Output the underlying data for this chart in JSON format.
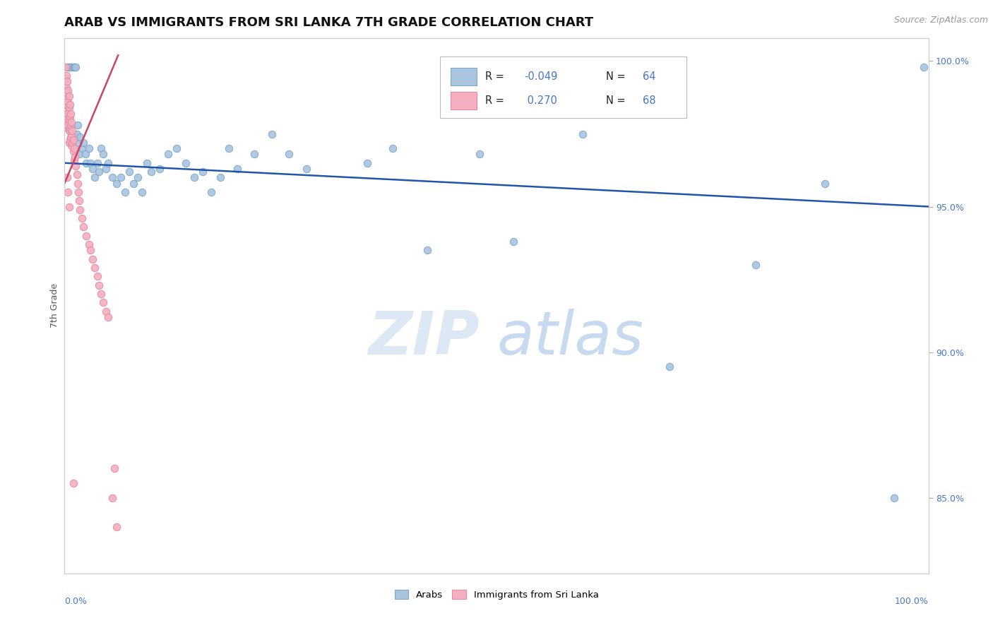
{
  "title": "ARAB VS IMMIGRANTS FROM SRI LANKA 7TH GRADE CORRELATION CHART",
  "source_text": "Source: ZipAtlas.com",
  "ylabel": "7th Grade",
  "ylabel_right_ticks": [
    85.0,
    90.0,
    95.0,
    100.0
  ],
  "xlim": [
    0.0,
    1.0
  ],
  "ylim": [
    0.824,
    1.008
  ],
  "watermark_zip": "ZIP",
  "watermark_atlas": "atlas",
  "blue_color": "#aac4e0",
  "blue_edge_color": "#7aaac8",
  "pink_color": "#f4b0c0",
  "pink_edge_color": "#e888a0",
  "blue_line_color": "#2255aa",
  "pink_line_color": "#cc4466",
  "grid_color": "#cccccc",
  "background_color": "#ffffff",
  "title_fontsize": 13,
  "axis_label_fontsize": 9,
  "tick_fontsize": 9,
  "source_fontsize": 9,
  "dot_size": 55,
  "blue_R": "-0.049",
  "blue_N": "64",
  "pink_R": "0.270",
  "pink_N": "68",
  "blue_line_x0": 0.0,
  "blue_line_x1": 1.0,
  "blue_line_y0": 0.965,
  "blue_line_y1": 0.95,
  "pink_line_x0": 0.0,
  "pink_line_x1": 0.062,
  "pink_line_y0": 0.958,
  "pink_line_y1": 1.002,
  "blue_x": [
    0.003,
    0.004,
    0.005,
    0.006,
    0.007,
    0.008,
    0.01,
    0.011,
    0.012,
    0.013,
    0.014,
    0.015,
    0.016,
    0.017,
    0.018,
    0.02,
    0.022,
    0.024,
    0.025,
    0.028,
    0.03,
    0.032,
    0.035,
    0.038,
    0.04,
    0.042,
    0.045,
    0.048,
    0.05,
    0.055,
    0.06,
    0.065,
    0.07,
    0.075,
    0.08,
    0.085,
    0.09,
    0.095,
    0.1,
    0.11,
    0.12,
    0.13,
    0.14,
    0.15,
    0.16,
    0.17,
    0.18,
    0.19,
    0.2,
    0.22,
    0.24,
    0.26,
    0.28,
    0.35,
    0.38,
    0.42,
    0.48,
    0.52,
    0.6,
    0.7,
    0.8,
    0.88,
    0.96,
    0.995
  ],
  "blue_y": [
    0.998,
    0.998,
    0.998,
    0.998,
    0.998,
    0.998,
    0.998,
    0.998,
    0.998,
    0.998,
    0.975,
    0.978,
    0.972,
    0.968,
    0.974,
    0.97,
    0.972,
    0.968,
    0.965,
    0.97,
    0.965,
    0.963,
    0.96,
    0.965,
    0.962,
    0.97,
    0.968,
    0.963,
    0.965,
    0.96,
    0.958,
    0.96,
    0.955,
    0.962,
    0.958,
    0.96,
    0.955,
    0.965,
    0.962,
    0.963,
    0.968,
    0.97,
    0.965,
    0.96,
    0.962,
    0.955,
    0.96,
    0.97,
    0.963,
    0.968,
    0.975,
    0.968,
    0.963,
    0.965,
    0.97,
    0.935,
    0.968,
    0.938,
    0.975,
    0.895,
    0.93,
    0.958,
    0.85,
    0.998
  ],
  "pink_x": [
    0.001,
    0.001,
    0.001,
    0.001,
    0.001,
    0.001,
    0.002,
    0.002,
    0.002,
    0.002,
    0.002,
    0.003,
    0.003,
    0.003,
    0.003,
    0.003,
    0.004,
    0.004,
    0.004,
    0.004,
    0.005,
    0.005,
    0.005,
    0.005,
    0.005,
    0.006,
    0.006,
    0.006,
    0.006,
    0.007,
    0.007,
    0.007,
    0.008,
    0.008,
    0.008,
    0.009,
    0.009,
    0.01,
    0.01,
    0.011,
    0.011,
    0.012,
    0.013,
    0.014,
    0.015,
    0.016,
    0.017,
    0.018,
    0.02,
    0.022,
    0.025,
    0.028,
    0.03,
    0.032,
    0.035,
    0.038,
    0.04,
    0.042,
    0.045,
    0.048,
    0.05,
    0.055,
    0.058,
    0.06,
    0.003,
    0.004,
    0.005,
    0.01
  ],
  "pink_y": [
    0.998,
    0.994,
    0.99,
    0.986,
    0.982,
    0.978,
    0.995,
    0.991,
    0.987,
    0.983,
    0.979,
    0.993,
    0.989,
    0.985,
    0.981,
    0.977,
    0.99,
    0.986,
    0.982,
    0.978,
    0.988,
    0.984,
    0.98,
    0.976,
    0.972,
    0.985,
    0.981,
    0.977,
    0.973,
    0.982,
    0.978,
    0.974,
    0.979,
    0.975,
    0.971,
    0.976,
    0.972,
    0.973,
    0.969,
    0.97,
    0.966,
    0.967,
    0.964,
    0.961,
    0.958,
    0.955,
    0.952,
    0.949,
    0.946,
    0.943,
    0.94,
    0.937,
    0.935,
    0.932,
    0.929,
    0.926,
    0.923,
    0.92,
    0.917,
    0.914,
    0.912,
    0.85,
    0.86,
    0.84,
    0.96,
    0.955,
    0.95,
    0.855
  ]
}
